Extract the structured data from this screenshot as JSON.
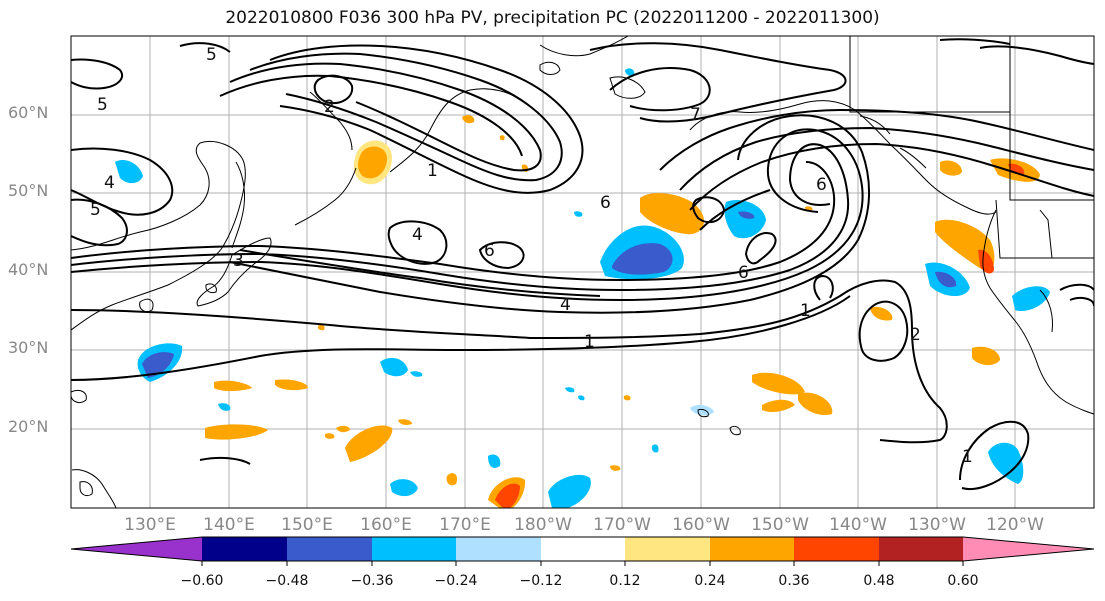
{
  "title": "2022010800 F036 300 hPa PV, precipitation PC (2022011200 - 2022011300)",
  "map": {
    "lat_labels": [
      "60°N",
      "50°N",
      "40°N",
      "30°N",
      "20°N"
    ],
    "lon_labels": [
      "130°E",
      "140°E",
      "150°E",
      "160°E",
      "170°E",
      "180°W",
      "170°W",
      "160°W",
      "150°W",
      "140°W",
      "130°W",
      "120°W"
    ],
    "contour_labels": [
      "1",
      "1",
      "1",
      "1",
      "2",
      "2",
      "3",
      "4",
      "4",
      "4",
      "5",
      "5",
      "5",
      "6",
      "6",
      "6",
      "6",
      "7"
    ]
  },
  "colorbar": {
    "colors": [
      "#9932cc",
      "#00008b",
      "#3a5bcb",
      "#00bfff",
      "#b0e0ff",
      "#ffffff",
      "#ffe680",
      "#ffa500",
      "#ff4500",
      "#b22222",
      "#ff8cb4"
    ],
    "tick_labels": [
      "−0.60",
      "−0.48",
      "−0.36",
      "−0.24",
      "−0.12",
      "0.12",
      "0.24",
      "0.36",
      "0.48",
      "0.60"
    ]
  }
}
